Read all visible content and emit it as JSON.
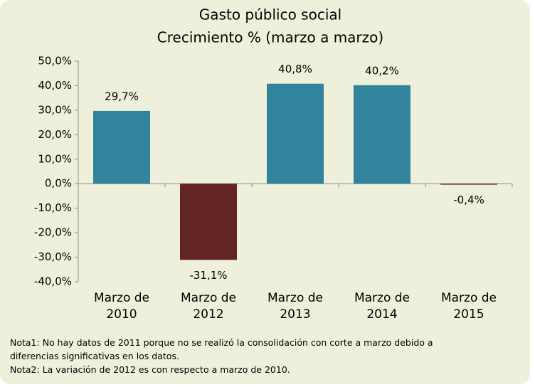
{
  "chart_data": {
    "type": "bar",
    "title": "Gasto público social",
    "subtitle": "Crecimiento % (marzo a marzo)",
    "categories": [
      "Marzo de 2010",
      "Marzo de 2012",
      "Marzo de 2013",
      "Marzo de 2014",
      "Marzo de 2015"
    ],
    "values": [
      29.7,
      -31.1,
      40.8,
      40.2,
      -0.4
    ],
    "value_labels": [
      "29,7%",
      "-31,1%",
      "40,8%",
      "40,2%",
      "-0,4%"
    ],
    "colors": [
      "#31849b",
      "#632523",
      "#31849b",
      "#31849b",
      "#632523"
    ],
    "ylim": [
      -40,
      50
    ],
    "yticks": [
      {
        "value": 50,
        "label": "50,0%"
      },
      {
        "value": 40,
        "label": "40,0%"
      },
      {
        "value": 30,
        "label": "30,0%"
      },
      {
        "value": 20,
        "label": "20,0%"
      },
      {
        "value": 10,
        "label": "10,0%"
      },
      {
        "value": 0,
        "label": "0,0%"
      },
      {
        "value": -10,
        "label": "-10,0%"
      },
      {
        "value": -20,
        "label": "-20,0%"
      },
      {
        "value": -30,
        "label": "-30,0%"
      },
      {
        "value": -40,
        "label": "-40,0%"
      }
    ],
    "notes": [
      "Nota1: No hay datos de 2011 porque no se realizó la consolidación con corte a marzo debido a diferencias significativas en los datos.",
      "Nota2: La variación de 2012 es con respecto a marzo de 2010."
    ]
  }
}
